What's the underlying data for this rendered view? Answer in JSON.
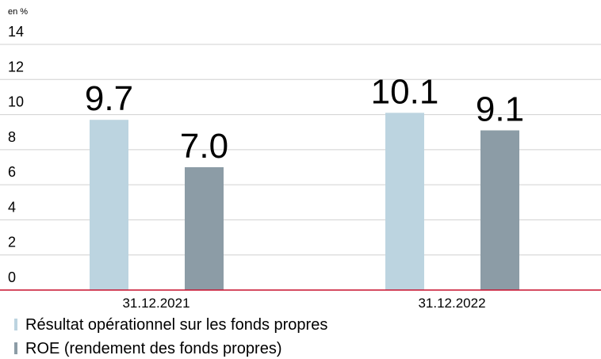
{
  "chart_data": {
    "type": "bar",
    "y_label": "en %",
    "categories": [
      "31.12.2021",
      "31.12.2022"
    ],
    "series": [
      {
        "name": "Résultat opérationnel sur les fonds propres",
        "color": "#bcd4e0",
        "values": [
          9.7,
          10.1
        ],
        "value_labels": [
          "9.7",
          "10.1"
        ]
      },
      {
        "name": "ROE (rendement des fonds propres)",
        "color": "#8c9ca6",
        "values": [
          7.0,
          9.1
        ],
        "value_labels": [
          "7.0",
          "9.1"
        ]
      }
    ],
    "ylim": [
      0,
      14
    ],
    "yticks": [
      0,
      2,
      4,
      6,
      8,
      10,
      12,
      14
    ],
    "grid": true,
    "axis_color": "#c8102e"
  }
}
